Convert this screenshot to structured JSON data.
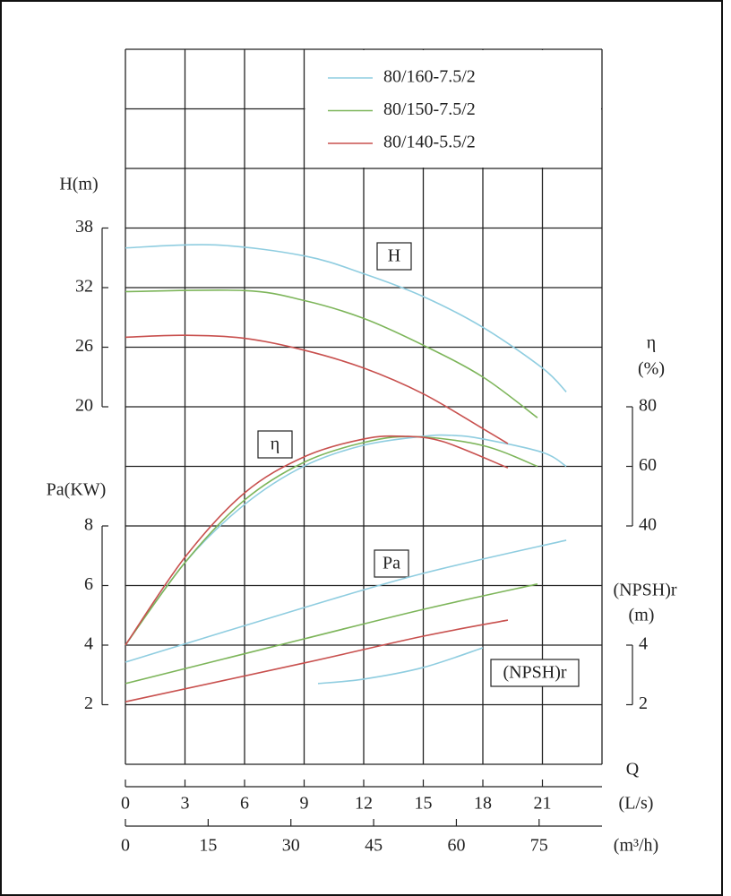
{
  "chart_data": {
    "type": "pump-curves",
    "x_title": "Q",
    "x_unit": "(L/s)",
    "xlim": [
      0,
      24
    ],
    "xticks": [
      0,
      3,
      6,
      9,
      12,
      15,
      18,
      21
    ],
    "x2_unit": "(m³/h)",
    "x2lim": [
      0,
      86.4
    ],
    "x2ticks": [
      0,
      15,
      30,
      45,
      60,
      75
    ],
    "grid": true,
    "axes": {
      "H": {
        "title": "H(m)",
        "box": "H",
        "ylim": [
          -16,
          56
        ],
        "yticks": [
          20,
          26,
          32,
          38
        ]
      },
      "eta": {
        "title": "η",
        "unit": "(%)",
        "box": "η",
        "ylim": [
          -40,
          200
        ],
        "yticks": [
          40,
          60,
          80
        ]
      },
      "Pa": {
        "title": "Pa(KW)",
        "box": "Pa",
        "ylim": [
          0,
          24
        ],
        "yticks": [
          2,
          4,
          6,
          8
        ]
      },
      "NPSH": {
        "title": "(NPSH)r",
        "unit": "(m)",
        "box": "(NPSH)r",
        "ylim": [
          0,
          24
        ],
        "yticks": [
          2,
          4
        ]
      }
    },
    "series": [
      {
        "name": "80/160-7.5/2",
        "color": "#8fcde0",
        "H": {
          "x": [
            0,
            4.5,
            9,
            12,
            15,
            18,
            21,
            22.2
          ],
          "values": [
            36.0,
            36.3,
            35.2,
            33.4,
            31.1,
            28.0,
            23.9,
            21.5
          ]
        },
        "eta": {
          "x": [
            0,
            3,
            6,
            9,
            12,
            15,
            16.5,
            18,
            21,
            22.2
          ],
          "values": [
            0,
            27.7,
            47.2,
            60.1,
            67.1,
            70.1,
            70.4,
            69.2,
            64.7,
            60
          ]
        },
        "Pa": {
          "x": [
            0,
            9,
            15,
            22.2
          ],
          "values": [
            3.43,
            5.26,
            6.41,
            7.52
          ]
        },
        "NPSH": {
          "x": [
            9.7,
            12,
            15,
            18
          ],
          "values": [
            2.71,
            2.86,
            3.25,
            3.91
          ]
        }
      },
      {
        "name": "80/150-7.5/2",
        "color": "#7db55a",
        "H": {
          "x": [
            0,
            6,
            9,
            12,
            15,
            18,
            20.75
          ],
          "values": [
            31.6,
            31.7,
            30.7,
            28.9,
            26.2,
            23.0,
            18.9
          ]
        },
        "eta": {
          "x": [
            0,
            3,
            6,
            9,
            12,
            14.5,
            18,
            20.75
          ],
          "values": [
            0,
            27.7,
            48.7,
            61.4,
            68,
            70,
            67,
            60
          ]
        },
        "Pa": {
          "x": [
            0,
            9,
            15,
            20.75
          ],
          "values": [
            2.71,
            4.21,
            5.2,
            6.05
          ]
        }
      },
      {
        "name": "80/140-5.5/2",
        "color": "#c8504e",
        "H": {
          "x": [
            0,
            3,
            6,
            9,
            12,
            15,
            18,
            19.26
          ],
          "values": [
            27.0,
            27.2,
            26.9,
            25.7,
            23.9,
            21.3,
            17.8,
            16.3
          ]
        },
        "eta": {
          "x": [
            0,
            3,
            6,
            9,
            12,
            14,
            16,
            19.26
          ],
          "values": [
            0,
            29.5,
            51.1,
            63.2,
            69.2,
            70.1,
            68.3,
            59.5
          ]
        },
        "Pa": {
          "x": [
            0,
            9,
            15,
            19.26
          ],
          "values": [
            2.1,
            3.4,
            4.3,
            4.84
          ]
        }
      }
    ]
  }
}
